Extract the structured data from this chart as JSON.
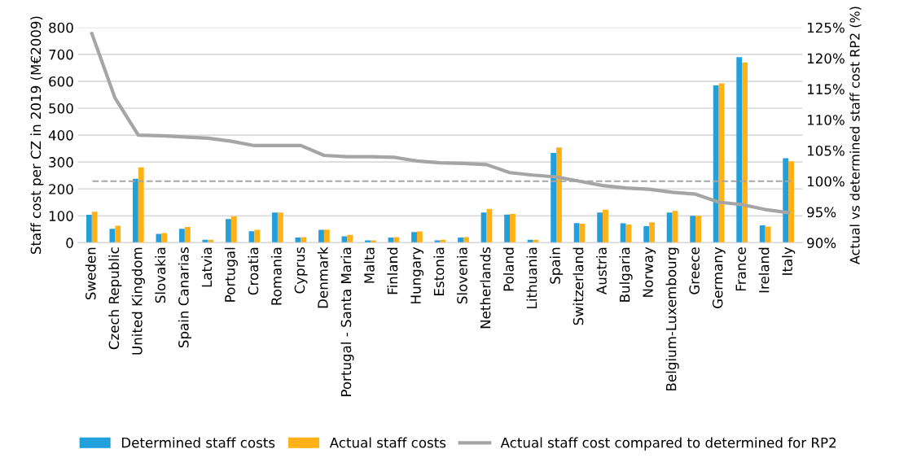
{
  "chart_data": {
    "type": "bar",
    "categories": [
      "Sweden",
      "Czech Republic",
      "United Kingdom",
      "Slovakia",
      "Spain Canarias",
      "Latvia",
      "Portugal",
      "Croatia",
      "Romania",
      "Cyprus",
      "Denmark",
      "Portugal - Santa Maria",
      "Malta",
      "Finland",
      "Hungary",
      "Estonia",
      "Slovenia",
      "Netherlands",
      "Poland",
      "Lithuania",
      "Spain",
      "Switzerland",
      "Austria",
      "Bulgaria",
      "Norway",
      "Belgium-Luxembourg",
      "Greece",
      "Germany",
      "France",
      "Ireland",
      "Italy"
    ],
    "series": [
      {
        "name": "Determined staff costs",
        "color": "#22a0dc",
        "values": [
          104,
          52,
          238,
          33,
          52,
          11,
          88,
          43,
          112,
          19,
          48,
          24,
          9,
          19,
          40,
          9,
          19,
          112,
          105,
          11,
          334,
          73,
          112,
          72,
          62,
          112,
          100,
          585,
          690,
          65,
          314
        ]
      },
      {
        "name": "Actual staff costs",
        "color": "#ffb117",
        "values": [
          115,
          63,
          280,
          36,
          59,
          11,
          98,
          48,
          112,
          21,
          49,
          29,
          9,
          21,
          42,
          11,
          21,
          126,
          107,
          11,
          354,
          71,
          123,
          68,
          76,
          118,
          100,
          592,
          670,
          60,
          303
        ]
      },
      {
        "name": "Actual staff cost compared to determined for RP2",
        "type": "line",
        "axis": "y2",
        "color": "#a5a5a5",
        "values": [
          124,
          113.5,
          107.5,
          107.4,
          107.2,
          107.0,
          106.5,
          105.8,
          105.8,
          105.8,
          104.2,
          104.0,
          104.0,
          103.9,
          103.3,
          103.0,
          102.9,
          102.7,
          101.4,
          101.0,
          100.7,
          100.0,
          99.3,
          98.9,
          98.7,
          98.2,
          97.9,
          96.6,
          96.2,
          95.4,
          94.9
        ]
      }
    ],
    "ylabel": "Staff cost per CZ in 2019 (M€2009)",
    "y2label": "Actual vs determined staff cost RP2 (%)",
    "ylim": [
      0,
      800
    ],
    "yticks": [
      0,
      100,
      200,
      300,
      400,
      500,
      600,
      700,
      800
    ],
    "y2lim": [
      90,
      125
    ],
    "y2ticks": [
      {
        "value": 90,
        "label": "90%"
      },
      {
        "value": 95,
        "label": "95%"
      },
      {
        "value": 100,
        "label": "100%"
      },
      {
        "value": 105,
        "label": "105%"
      },
      {
        "value": 110,
        "label": "110%"
      },
      {
        "value": 115,
        "label": "115%"
      },
      {
        "value": 120,
        "label": "120%"
      },
      {
        "value": 125,
        "label": "125%"
      }
    ],
    "ref_lines": [
      {
        "axis": "y2",
        "value": 100,
        "color": "#a5a5a5",
        "line_style": "dashed"
      }
    ],
    "grid": "y",
    "legend": "bottom"
  }
}
